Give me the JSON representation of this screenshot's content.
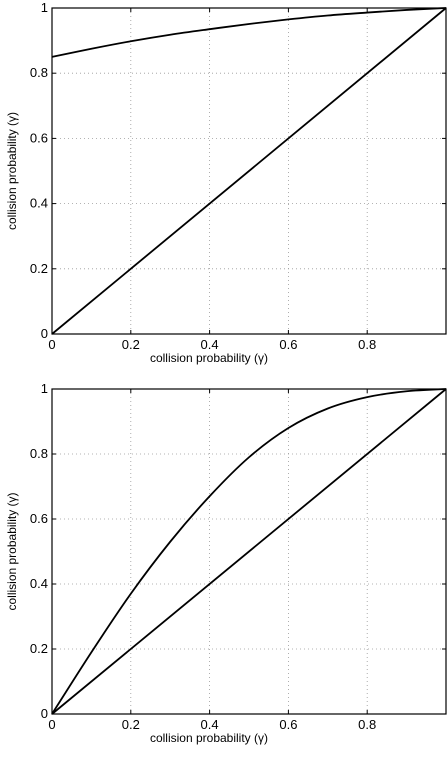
{
  "chart_data": [
    {
      "type": "line",
      "title": "",
      "xlabel": "collision probability (γ)",
      "ylabel": "collision probability (γ)",
      "xlim": [
        0,
        1
      ],
      "ylim": [
        0,
        1
      ],
      "x_ticks": [
        "0",
        "0.2",
        "0.4",
        "0.6",
        "0.8"
      ],
      "y_ticks": [
        "0",
        "0.2",
        "0.4",
        "0.6",
        "0.8",
        "1"
      ],
      "grid": true,
      "series": [
        {
          "x": [
            0,
            0.1,
            0.2,
            0.3,
            0.4,
            0.5,
            0.6,
            0.7,
            0.8,
            0.9,
            1.0
          ],
          "y": [
            0.85,
            0.875,
            0.898,
            0.918,
            0.935,
            0.951,
            0.965,
            0.977,
            0.986,
            0.994,
            1.0
          ]
        },
        {
          "x": [
            0,
            1
          ],
          "y": [
            0,
            1
          ]
        }
      ]
    },
    {
      "type": "line",
      "title": "",
      "xlabel": "collision probability (γ)",
      "ylabel": "collision probability (γ)",
      "xlim": [
        0,
        1
      ],
      "ylim": [
        0,
        1
      ],
      "x_ticks": [
        "0",
        "0.2",
        "0.4",
        "0.6",
        "0.8"
      ],
      "y_ticks": [
        "0",
        "0.2",
        "0.4",
        "0.6",
        "0.8",
        "1"
      ],
      "grid": true,
      "series": [
        {
          "x": [
            0,
            0.1,
            0.2,
            0.3,
            0.4,
            0.5,
            0.6,
            0.7,
            0.8,
            0.9,
            1.0
          ],
          "y": [
            0,
            0.19,
            0.37,
            0.53,
            0.67,
            0.79,
            0.88,
            0.94,
            0.975,
            0.993,
            1.0
          ]
        },
        {
          "x": [
            0,
            1
          ],
          "y": [
            0,
            1
          ]
        }
      ]
    }
  ]
}
